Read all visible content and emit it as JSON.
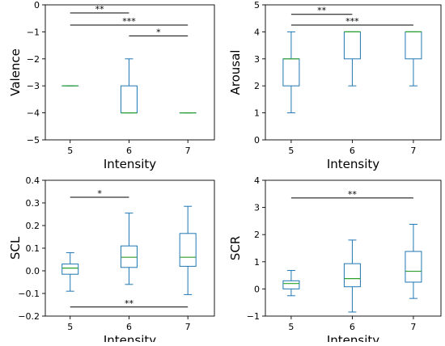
{
  "colors": {
    "box": "#1f77b4",
    "median": "#2ca02c",
    "sig": "#000000",
    "frame": "#000000"
  },
  "chart_data": [
    {
      "type": "box",
      "xlabel": "Intensity",
      "ylabel": "Valence",
      "categories": [
        "5",
        "6",
        "7"
      ],
      "ylim": [
        -5,
        0
      ],
      "yticks": [
        -5,
        -4,
        -3,
        -2,
        -1,
        0
      ],
      "yticklabels": [
        "−5",
        "−4",
        "−3",
        "−2",
        "−1",
        "0"
      ],
      "boxes": [
        {
          "category": "5",
          "whislo": -3,
          "q1": -3,
          "median": -3,
          "q3": -3,
          "whishi": -3
        },
        {
          "category": "6",
          "whislo": -4,
          "q1": -4,
          "median": -4,
          "q3": -3,
          "whishi": -2
        },
        {
          "category": "7",
          "whislo": -4,
          "q1": -4,
          "median": -4,
          "q3": -4,
          "whishi": -4
        }
      ],
      "significance": [
        {
          "from": "5",
          "to": "6",
          "y": -0.3,
          "label": "**"
        },
        {
          "from": "5",
          "to": "7",
          "y": -0.75,
          "label": "***"
        },
        {
          "from": "6",
          "to": "7",
          "y": -1.15,
          "label": "*"
        }
      ]
    },
    {
      "type": "box",
      "xlabel": "Intensity",
      "ylabel": "Arousal",
      "categories": [
        "5",
        "6",
        "7"
      ],
      "ylim": [
        0,
        5
      ],
      "yticks": [
        0,
        1,
        2,
        3,
        4,
        5
      ],
      "yticklabels": [
        "0",
        "1",
        "2",
        "3",
        "4",
        "5"
      ],
      "boxes": [
        {
          "category": "5",
          "whislo": 1,
          "q1": 2,
          "median": 3,
          "q3": 3,
          "whishi": 4
        },
        {
          "category": "6",
          "whislo": 2,
          "q1": 3,
          "median": 4,
          "q3": 4,
          "whishi": 4
        },
        {
          "category": "7",
          "whislo": 2,
          "q1": 3,
          "median": 4,
          "q3": 4,
          "whishi": 4
        }
      ],
      "significance": [
        {
          "from": "5",
          "to": "6",
          "y": 4.65,
          "label": "**"
        },
        {
          "from": "5",
          "to": "7",
          "y": 4.25,
          "label": "***"
        }
      ]
    },
    {
      "type": "box",
      "xlabel": "Intensity",
      "ylabel": "SCL",
      "categories": [
        "5",
        "6",
        "7"
      ],
      "ylim": [
        -0.2,
        0.4
      ],
      "yticks": [
        -0.2,
        -0.1,
        0.0,
        0.1,
        0.2,
        0.3,
        0.4
      ],
      "yticklabels": [
        "−0.2",
        "−0.1",
        "0.0",
        "0.1",
        "0.2",
        "0.3",
        "0.4"
      ],
      "boxes": [
        {
          "category": "5",
          "whislo": -0.09,
          "q1": -0.015,
          "median": 0.012,
          "q3": 0.03,
          "whishi": 0.08
        },
        {
          "category": "6",
          "whislo": -0.06,
          "q1": 0.015,
          "median": 0.06,
          "q3": 0.11,
          "whishi": 0.255
        },
        {
          "category": "7",
          "whislo": -0.105,
          "q1": 0.02,
          "median": 0.06,
          "q3": 0.165,
          "whishi": 0.285
        }
      ],
      "significance": [
        {
          "from": "5",
          "to": "6",
          "y": 0.325,
          "label": "*"
        },
        {
          "from": "5",
          "to": "7",
          "y": -0.16,
          "label": "**"
        }
      ]
    },
    {
      "type": "box",
      "xlabel": "Intensity",
      "ylabel": "SCR",
      "categories": [
        "5",
        "6",
        "7"
      ],
      "ylim": [
        -1,
        4
      ],
      "yticks": [
        -1,
        0,
        1,
        2,
        3,
        4
      ],
      "yticklabels": [
        "−1",
        "0",
        "1",
        "2",
        "3",
        "4"
      ],
      "boxes": [
        {
          "category": "5",
          "whislo": -0.25,
          "q1": 0.0,
          "median": 0.2,
          "q3": 0.3,
          "whishi": 0.68
        },
        {
          "category": "6",
          "whislo": -0.85,
          "q1": 0.08,
          "median": 0.38,
          "q3": 0.93,
          "whishi": 1.8
        },
        {
          "category": "7",
          "whislo": -0.35,
          "q1": 0.25,
          "median": 0.65,
          "q3": 1.38,
          "whishi": 2.38
        }
      ],
      "significance": [
        {
          "from": "5",
          "to": "7",
          "y": 3.35,
          "label": "**"
        }
      ]
    }
  ]
}
